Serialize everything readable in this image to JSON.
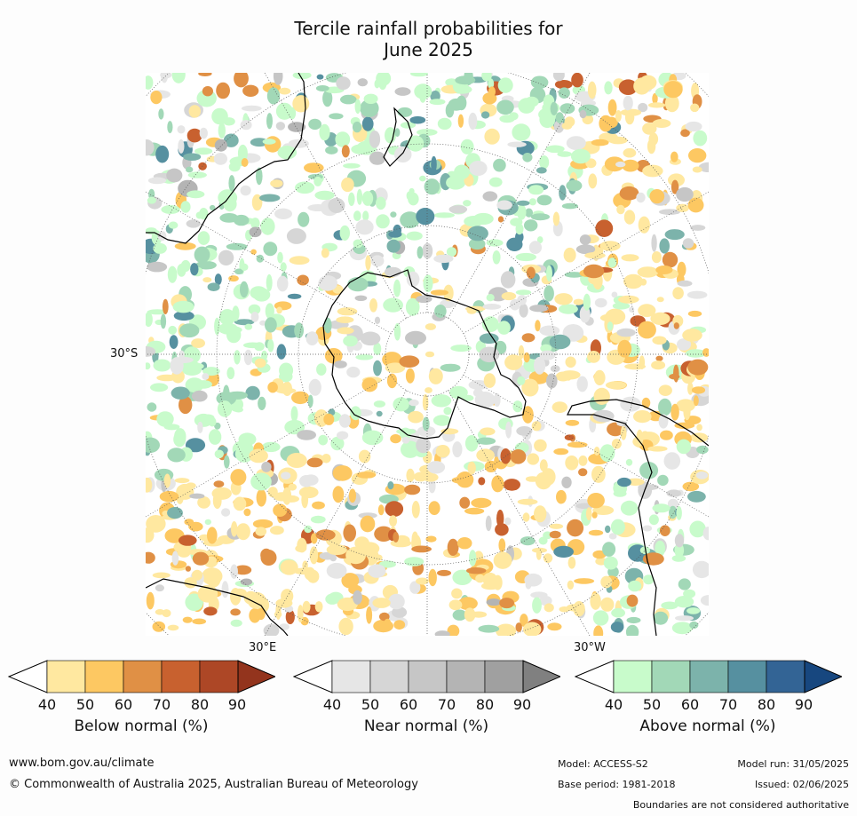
{
  "title_line1": "Tercile rainfall probabilities for",
  "title_line2": "June 2025",
  "map": {
    "projection": "south-polar-stereographic",
    "lat_label": "30°S",
    "lon_label_east": "30°E",
    "lon_label_west": "30°W",
    "ocean_color": "#ffffff",
    "coast_color": "#000000"
  },
  "legends": [
    {
      "id": "below",
      "title": "Below normal (%)",
      "ticks": [
        "40",
        "50",
        "60",
        "70",
        "80",
        "90"
      ],
      "colors": [
        "#ffffff",
        "#ffe8a0",
        "#fdc862",
        "#e09045",
        "#c8612f",
        "#ad4726",
        "#93341d"
      ]
    },
    {
      "id": "near",
      "title": "Near normal (%)",
      "ticks": [
        "40",
        "50",
        "60",
        "70",
        "80",
        "90"
      ],
      "colors": [
        "#ffffff",
        "#e6e6e6",
        "#d6d6d6",
        "#c6c6c6",
        "#b4b4b4",
        "#a0a0a0",
        "#808080"
      ]
    },
    {
      "id": "above",
      "title": "Above normal (%)",
      "ticks": [
        "40",
        "50",
        "60",
        "70",
        "80",
        "90"
      ],
      "colors": [
        "#ffffff",
        "#c8fbcb",
        "#a2d8b7",
        "#7cb3ab",
        "#5690a0",
        "#336495",
        "#17477f"
      ]
    }
  ],
  "footer": {
    "website": "www.bom.gov.au/climate",
    "copyright": "© Commonwealth of Australia 2025, Australian Bureau of Meteorology",
    "model": "Model: ACCESS-S2",
    "base_period": "Base period: 1981-2018",
    "model_run": "Model run: 31/05/2025",
    "issued": "Issued: 02/06/2025",
    "disclaimer": "Boundaries are not considered authoritative"
  }
}
